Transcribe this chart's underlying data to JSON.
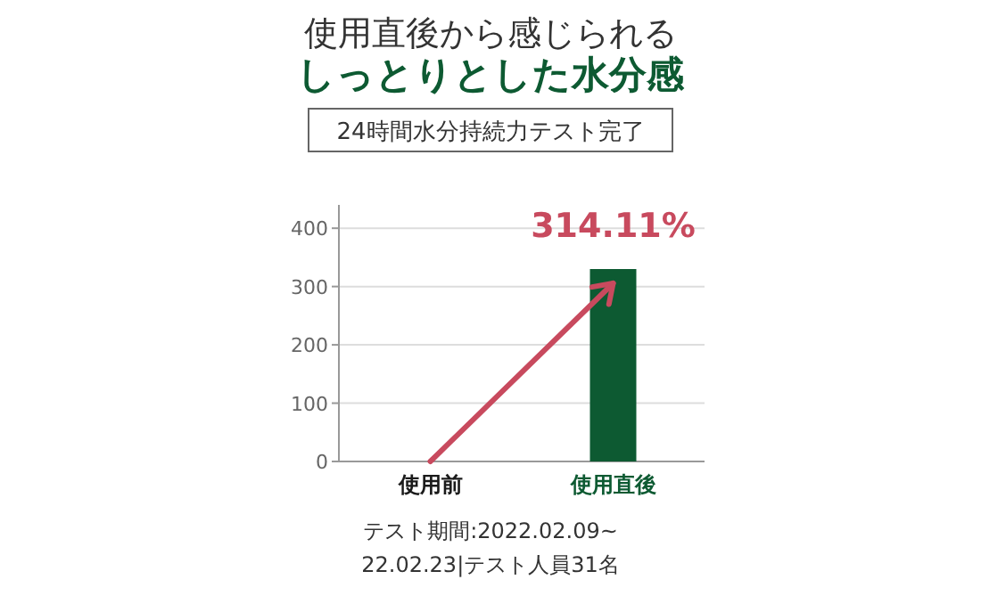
{
  "chart_data": {
    "type": "bar",
    "title": "使用直後から感じられる",
    "subtitle": "しっとりとした水分感",
    "categories": [
      "使用前",
      "使用直後"
    ],
    "values": [
      0,
      330
    ],
    "colors": [
      "#1a1a1a",
      "#0d5a32"
    ],
    "ylim": [
      0,
      440
    ],
    "yticks": [
      0,
      100,
      200,
      300,
      400
    ],
    "grid": "y",
    "annotations": [
      "24時間水分持続力テスト完了",
      "314.11%",
      "テスト期間:2022.02.09~",
      "22.02.23|テスト人員31名"
    ]
  }
}
